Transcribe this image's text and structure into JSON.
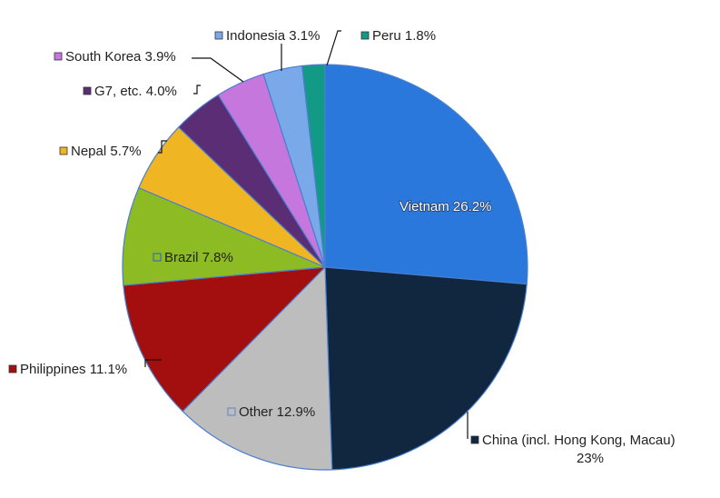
{
  "chart_data": {
    "type": "pie",
    "title": "",
    "slices": [
      {
        "label": "Vietnam",
        "value": 26.2,
        "display": "26.2%",
        "color": "#2a78dc"
      },
      {
        "label": "China (incl. Hong Kong, Macau)",
        "value": 23.0,
        "display": "23%",
        "color": "#11263f"
      },
      {
        "label": "Other",
        "value": 12.9,
        "display": "12.9%",
        "color": "#bdbdbd"
      },
      {
        "label": "Philippines",
        "value": 11.1,
        "display": "11.1%",
        "color": "#a30e0e"
      },
      {
        "label": "Brazil",
        "value": 7.8,
        "display": "7.8%",
        "color": "#8dbb23"
      },
      {
        "label": "Nepal",
        "value": 5.7,
        "display": "5.7%",
        "color": "#efb523"
      },
      {
        "label": "G7, etc.",
        "value": 4.0,
        "display": "4.0%",
        "color": "#5a2d74"
      },
      {
        "label": "South Korea",
        "value": 3.9,
        "display": "3.9%",
        "color": "#c677dd"
      },
      {
        "label": "Indonesia",
        "value": 3.1,
        "display": "3.1%",
        "color": "#79a9e9"
      },
      {
        "label": "Peru",
        "value": 1.8,
        "display": "1.8%",
        "color": "#139a86"
      }
    ],
    "start_angle_deg": 0,
    "direction": "clockwise",
    "legend": "none",
    "labels": [
      {
        "text": "Vietnam 26.2%",
        "position": "inside"
      },
      {
        "text": "China (incl. Hong Kong, Macau)",
        "text2": "23%",
        "position": "outside"
      },
      {
        "text": "Other 12.9%",
        "position": "inside"
      },
      {
        "text": "Philippines 11.1%",
        "position": "outside"
      },
      {
        "text": "Brazil 7.8%",
        "position": "inside"
      },
      {
        "text": "Nepal 5.7%",
        "position": "outside"
      },
      {
        "text": "G7, etc. 4.0%",
        "position": "outside"
      },
      {
        "text": "South Korea 3.9%",
        "position": "outside"
      },
      {
        "text": "Indonesia 3.1%",
        "position": "outside"
      },
      {
        "text": "Peru 1.8%",
        "position": "outside"
      }
    ]
  }
}
